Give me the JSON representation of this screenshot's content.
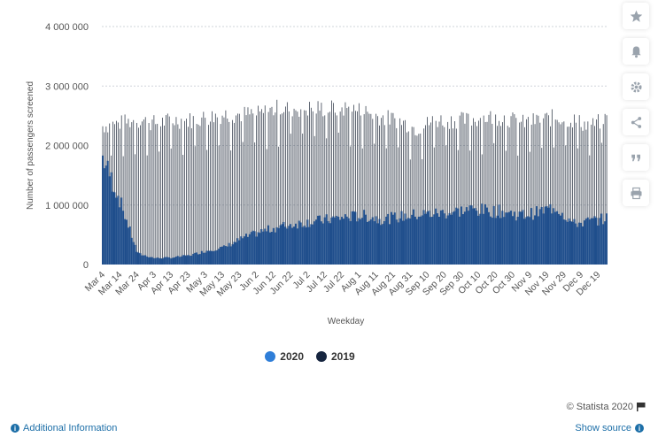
{
  "chart_data": {
    "type": "bar",
    "title": "",
    "xlabel": "Weekday",
    "ylabel": "Number of passengers screened",
    "ylim": [
      0,
      4000000
    ],
    "y_ticks": [
      "0",
      "1 000 000",
      "2 000 000",
      "3 000 000",
      "4 000 000"
    ],
    "x_tick_labels": [
      "Mar 4",
      "Mar 14",
      "Mar 24",
      "Apr 3",
      "Apr 13",
      "Apr 23",
      "May 3",
      "May 13",
      "May 23",
      "Jun 2",
      "Jun 12",
      "Jun 22",
      "Jul 2",
      "Jul 12",
      "Jul 22",
      "Aug 1",
      "Aug 11",
      "Aug 21",
      "Aug 31",
      "Sep 10",
      "Sep 20",
      "Sep 30",
      "Oct 10",
      "Oct 20",
      "Oct 30",
      "Nov 9",
      "Nov 19",
      "Nov 29",
      "Dec 9",
      "Dec 19"
    ],
    "days_per_tick": 10,
    "series": [
      {
        "name": "2020",
        "weekly_samples": [
          1850000,
          1100000,
          190000,
          110000,
          120000,
          160000,
          240000,
          300000,
          450000,
          560000,
          640000,
          700000,
          740000,
          780000,
          820000,
          840000,
          780000,
          820000,
          860000,
          880000,
          900000,
          950000,
          930000,
          910000,
          850000,
          900000,
          1000000,
          700000,
          750000,
          800000
        ]
      },
      {
        "name": "2019",
        "weekly_samples": [
          2350000,
          2400000,
          2450000,
          2400000,
          2450000,
          2450000,
          2500000,
          2550000,
          2550000,
          2550000,
          2650000,
          2650000,
          2650000,
          2650000,
          2650000,
          2600000,
          2500000,
          2450000,
          2300000,
          2450000,
          2450000,
          2450000,
          2500000,
          2500000,
          2400000,
          2450000,
          2500000,
          2450000,
          2350000,
          2500000
        ]
      }
    ]
  },
  "legend": {
    "items": [
      {
        "label": "2020",
        "color": "#2f7ed8"
      },
      {
        "label": "2019",
        "color": "#16253f"
      }
    ]
  },
  "colors": {
    "bar_2020": "#1f4e8c",
    "bar_2019": "#3b4452",
    "highlight": "#5b8fe0"
  },
  "sidebar": {
    "buttons": [
      {
        "icon": "star-icon"
      },
      {
        "icon": "bell-icon"
      },
      {
        "icon": "gear-icon"
      },
      {
        "icon": "share-icon"
      },
      {
        "icon": "quote-icon"
      },
      {
        "icon": "print-icon"
      }
    ]
  },
  "footer": {
    "credit": "© Statista 2020",
    "additional_info": "Additional Information",
    "show_source": "Show source"
  }
}
